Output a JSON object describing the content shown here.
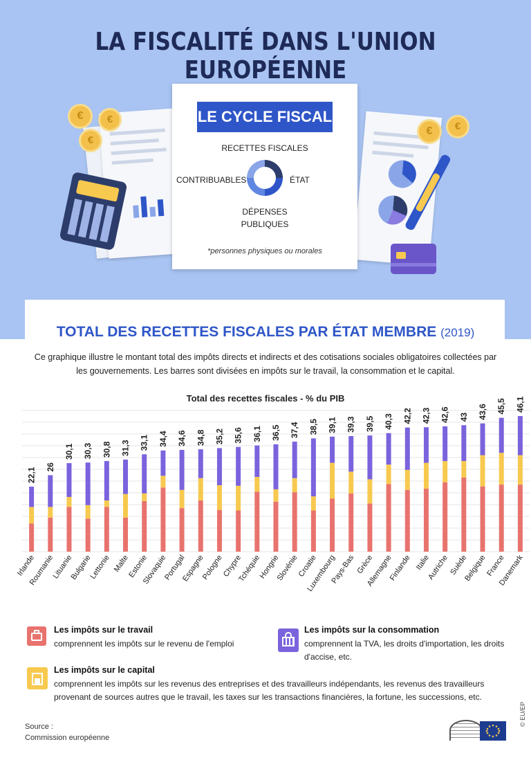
{
  "header": {
    "title": "LA FISCALITÉ DANS L'UNION EUROPÉENNE"
  },
  "cycle": {
    "title": "LE CYCLE FISCAL",
    "top": "RECETTES FISCALES",
    "left": "CONTRIBUABLES*",
    "right": "ÉTAT",
    "bottom_line1": "DÉPENSES",
    "bottom_line2": "PUBLIQUES",
    "note": "*personnes physiques ou morales"
  },
  "section": {
    "title": "TOTAL DES RECETTES FISCALES PAR ÉTAT MEMBRE",
    "year": "(2019)",
    "description_line1": "Ce graphique illustre le montant total des impôts directs et indirects et des cotisations sociales obligatoires collectées par",
    "description_line2": "les gouvernements. Les barres sont divisées en impôts sur le travail, la consommation et le capital."
  },
  "colors": {
    "labour": "#e8736e",
    "capital": "#f7c94f",
    "consumption": "#7a63dc",
    "accent": "#2f56c8",
    "background": "#a9c4f2"
  },
  "chart_data": {
    "type": "bar",
    "stacked": true,
    "title": "Total des recettes fiscales - % du PIB",
    "xlabel": "",
    "ylabel": "",
    "ylim": [
      0,
      48
    ],
    "grid": true,
    "categories": [
      "Irlande",
      "Roumanie",
      "Lituanie",
      "Bulgarie",
      "Lettonie",
      "Malte",
      "Estonie",
      "Slovaquie",
      "Portugal",
      "Espagne",
      "Pologne",
      "Chypre",
      "Tchéquie",
      "Hongrie",
      "Slovénie",
      "Croatie",
      "Luxembourg",
      "Pays-Bas",
      "Grèce",
      "Allemagne",
      "Finlande",
      "Italie",
      "Autriche",
      "Suède",
      "Belgique",
      "France",
      "Danemark"
    ],
    "total_labels": [
      "22,1",
      "26",
      "30,1",
      "30,3",
      "30,8",
      "31,3",
      "33,1",
      "34,4",
      "34,6",
      "34,8",
      "35,2",
      "35,6",
      "36,1",
      "36,5",
      "37,4",
      "38,5",
      "39,1",
      "39,3",
      "39,5",
      "40,3",
      "42,2",
      "42,3",
      "42,6",
      "43",
      "43,6",
      "45,5",
      "46,1"
    ],
    "series": [
      {
        "name": "Les impôts sur le travail",
        "values": [
          9.6,
          11.6,
          15.2,
          11.2,
          15.2,
          11.6,
          17.2,
          21.8,
          14.8,
          17.4,
          14.2,
          14.0,
          20.4,
          17.0,
          20.2,
          14.0,
          18.0,
          19.8,
          16.4,
          23.0,
          21.0,
          21.4,
          23.6,
          25.2,
          22.2,
          22.8,
          22.8
        ]
      },
      {
        "name": "Les impôts sur le capital",
        "values": [
          5.6,
          3.6,
          3.4,
          4.6,
          2.2,
          8.0,
          2.6,
          4.0,
          6.2,
          7.6,
          8.4,
          8.4,
          5.0,
          4.2,
          4.8,
          4.8,
          12.2,
          7.4,
          8.2,
          6.6,
          6.8,
          8.8,
          7.2,
          5.6,
          10.6,
          10.8,
          10.0
        ]
      },
      {
        "name": "Les impôts sur la consommation",
        "values": [
          6.9,
          10.8,
          11.5,
          14.5,
          13.4,
          11.7,
          13.3,
          8.6,
          13.6,
          9.8,
          12.6,
          13.2,
          10.7,
          15.3,
          12.4,
          19.7,
          8.9,
          12.1,
          14.9,
          10.7,
          14.4,
          12.1,
          11.8,
          12.2,
          10.8,
          11.9,
          13.3
        ]
      }
    ]
  },
  "legend": {
    "labour_title": "Les impôts sur le travail",
    "labour_text": "comprennent les impôts sur le revenu de l'emploi",
    "consumption_title": "Les impôts sur la consommation",
    "consumption_text_line1": "comprennent la TVA, les droits d'importation, les droits",
    "consumption_text_line2": "d'accise, etc.",
    "capital_title": "Les impôts sur le capital",
    "capital_text_line1": "comprennent les impôts sur les revenus des entreprises et des travailleurs indépendants, les revenus des travailleurs",
    "capital_text_line2": "provenant de sources autres que le travail, les taxes sur les transactions financières, la fortune, les successions, etc."
  },
  "source": {
    "label": "Source :",
    "name": "Commission européenne"
  },
  "credit": "© EU/EP"
}
